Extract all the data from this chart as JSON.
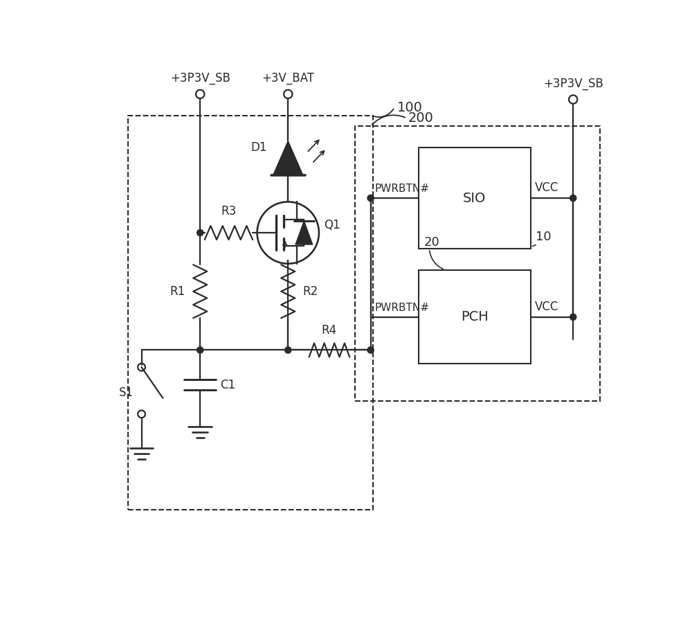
{
  "bg_color": "#ffffff",
  "line_color": "#2a2a2a",
  "line_width": 1.6,
  "fig_width": 10.0,
  "fig_height": 9.14,
  "labels": {
    "3P3V_SB_top": "+3P3V_SB",
    "3V_BAT_top": "+3V_BAT",
    "D1": "D1",
    "Q1": "Q1",
    "R1": "R1",
    "R2": "R2",
    "R3": "R3",
    "R4": "R4",
    "C1": "C1",
    "S1": "S1",
    "box100": "100",
    "box200": "200",
    "box10": "10",
    "box20": "20",
    "SIO": "SIO",
    "PCH": "PCH",
    "PWRBTN_SIO": "PWRBTN#",
    "PWRBTN_PCH": "PWRBTN#",
    "VCC_SIO": "VCC",
    "VCC_PCH": "VCC",
    "3P3V_SB_right": "+3P3V_SB"
  }
}
